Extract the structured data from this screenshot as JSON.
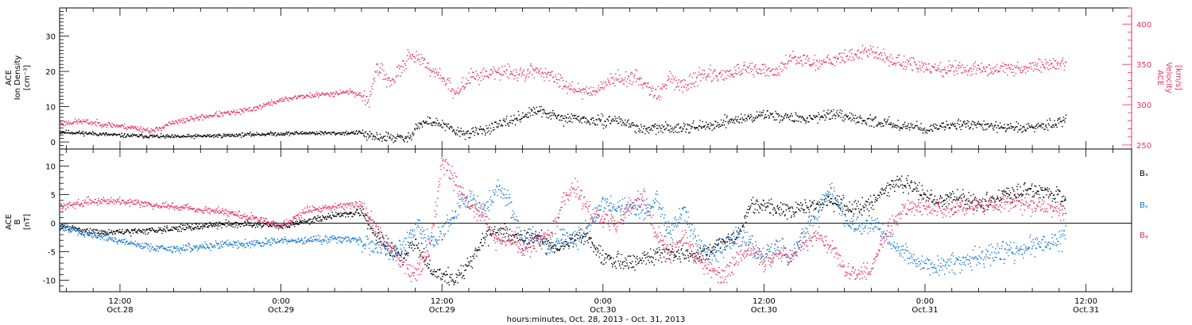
{
  "colors": {
    "black": "#000000",
    "pink": "#e8305f",
    "blue": "#1177d6",
    "axis": "#000000"
  },
  "xaxis": {
    "ticks": [
      {
        "t": 12,
        "top": "12:00",
        "bottom": "Oct.28"
      },
      {
        "t": 24,
        "top": "0:00",
        "bottom": "Oct.29"
      },
      {
        "t": 36,
        "top": "12:00",
        "bottom": "Oct.29"
      },
      {
        "t": 48,
        "top": "0:00",
        "bottom": "Oct.30"
      },
      {
        "t": 60,
        "top": "12:00",
        "bottom": "Oct.30"
      },
      {
        "t": 72,
        "top": "0:00",
        "bottom": "Oct.31"
      },
      {
        "t": 84,
        "top": "12:00",
        "bottom": "Oct.31"
      }
    ],
    "label": "hours:minutes, Oct. 28, 2013 - Oct. 31, 2013"
  },
  "chart_data": [
    {
      "type": "scatter",
      "title": "",
      "xlabel": "hours:minutes, Oct. 28, 2013 - Oct. 31, 2013",
      "xlim_hours_from_oct28_0000": [
        7.5,
        87.4
      ],
      "ylabel_left": [
        "ACE",
        "Ion Density",
        "[cm⁻³]"
      ],
      "ylim_left": [
        -2,
        38
      ],
      "yticks_left": [
        0,
        10,
        20,
        30
      ],
      "ylabel_right": [
        "ACE",
        "Velocity",
        "[km/s]"
      ],
      "ylim_right": [
        245,
        420
      ],
      "yticks_right": [
        250,
        300,
        350,
        400
      ],
      "series": [
        {
          "name": "",
          "axis": "left",
          "color": "black",
          "x": [
            7.5,
            10,
            12,
            14,
            16,
            18,
            20,
            22,
            24,
            26,
            28,
            30,
            30.5,
            32,
            33.5,
            34,
            35,
            36,
            37,
            38,
            39,
            40,
            41,
            42,
            43,
            44,
            45,
            46,
            47,
            48,
            49,
            50,
            51,
            52,
            53,
            54,
            55,
            56,
            57,
            58,
            59,
            60,
            61,
            62,
            63,
            64,
            65,
            66,
            67,
            68,
            69,
            70,
            71,
            72,
            73,
            74,
            75,
            76,
            77,
            78,
            79,
            80,
            81,
            82,
            82.5
          ],
          "y": [
            3,
            2.5,
            2,
            1.8,
            1.6,
            1.8,
            2,
            2.3,
            2.5,
            2.7,
            2.6,
            2.8,
            1.5,
            1.5,
            1,
            4.5,
            6,
            5,
            3,
            2.5,
            3.5,
            4.5,
            6,
            7.5,
            9,
            8,
            6.5,
            7,
            6,
            6,
            6.5,
            5,
            3.5,
            4,
            4,
            4.5,
            4.5,
            4.5,
            6,
            6.5,
            7,
            8,
            7.5,
            7,
            6.5,
            7.5,
            8,
            7,
            6.5,
            6,
            5.5,
            5,
            4.5,
            4,
            4,
            5,
            5.5,
            5,
            4.5,
            4.2,
            4,
            4.5,
            5,
            6,
            7
          ]
        },
        {
          "name": "",
          "axis": "right",
          "color": "pink",
          "x": [
            7.5,
            9,
            11,
            13,
            14.5,
            15.5,
            17,
            19,
            21,
            22,
            23.5,
            25,
            27,
            29,
            30,
            30.5,
            31,
            31.5,
            32,
            33,
            33.5,
            34,
            35,
            36,
            37,
            38,
            39,
            40,
            41,
            42,
            43,
            44,
            45,
            46,
            47,
            48,
            49,
            50,
            51,
            52,
            53,
            54,
            55,
            56,
            57,
            58,
            59,
            60,
            61,
            62,
            63,
            64,
            65,
            66,
            67,
            68,
            69,
            70,
            71,
            72,
            73,
            74,
            75,
            76,
            77,
            78,
            79,
            80,
            81,
            82,
            82.5
          ],
          "y": [
            277,
            280,
            276,
            272,
            268,
            276,
            282,
            288,
            292,
            296,
            304,
            310,
            313,
            317,
            312,
            305,
            338,
            345,
            326,
            345,
            364,
            360,
            346,
            336,
            312,
            335,
            338,
            340,
            341,
            338,
            344,
            336,
            328,
            320,
            316,
            326,
            333,
            334,
            330,
            312,
            334,
            322,
            336,
            338,
            338,
            342,
            344,
            342,
            340,
            361,
            355,
            352,
            358,
            360,
            364,
            368,
            358,
            354,
            351,
            346,
            344,
            346,
            345,
            344,
            344,
            348,
            345,
            348,
            350,
            352,
            350
          ]
        }
      ]
    },
    {
      "type": "scatter",
      "title": "",
      "xlabel": "hours:minutes, Oct. 28, 2013 - Oct. 31, 2013",
      "xlim_hours_from_oct28_0000": [
        7.5,
        87.4
      ],
      "ylabel": [
        "ACE",
        "B",
        "[nT]"
      ],
      "ylim": [
        -12,
        13
      ],
      "yticks": [
        -10,
        -5,
        0,
        5,
        10
      ],
      "series": [
        {
          "name": "Bₓ",
          "color": "black",
          "x": [
            7.5,
            10,
            12,
            14,
            16,
            18,
            20,
            22,
            24,
            26,
            28,
            30,
            31,
            32,
            33,
            34,
            35,
            36,
            37,
            38,
            39,
            40,
            41,
            42,
            43,
            44,
            45,
            46,
            47,
            48,
            49,
            50,
            51,
            52,
            53,
            54,
            55,
            56,
            57,
            58,
            59,
            60,
            61,
            62,
            63,
            64,
            65,
            66,
            67,
            68,
            69,
            70,
            71,
            72,
            73,
            74,
            75,
            76,
            77,
            78,
            79,
            80,
            81,
            82,
            82.5
          ],
          "y": [
            -0.5,
            -1.5,
            -1.5,
            -1.2,
            -0.8,
            -0.5,
            0,
            0,
            -0.5,
            0.5,
            1.5,
            2,
            -1.5,
            -4.5,
            -6,
            -3,
            -8,
            -9,
            -10,
            -7,
            -3,
            -1,
            -2,
            -3,
            -2,
            -4,
            -4,
            -2,
            -3,
            -6,
            -6.5,
            -7,
            -6,
            -5.5,
            -5,
            -5.5,
            -5.5,
            -4.5,
            -3,
            -2,
            3,
            3.5,
            2.5,
            2,
            3,
            3,
            4,
            3,
            2.5,
            4,
            6,
            7.5,
            6.5,
            5,
            4,
            4.5,
            4,
            3.5,
            4,
            5,
            5.5,
            6,
            5.5,
            5,
            4
          ]
        },
        {
          "name": "Bᵧ",
          "color": "blue",
          "x": [
            7.5,
            10,
            12,
            14,
            16,
            18,
            20,
            22,
            24,
            26,
            28,
            30,
            31,
            32,
            33,
            34,
            35,
            36,
            37,
            38,
            39,
            40,
            41,
            42,
            43,
            44,
            45,
            46,
            47,
            48,
            49,
            50,
            51,
            52,
            53,
            54,
            55,
            56,
            57,
            58,
            59,
            60,
            61,
            62,
            63,
            64,
            65,
            66,
            67,
            68,
            69,
            70,
            71,
            72,
            73,
            74,
            75,
            76,
            77,
            78,
            79,
            80,
            81,
            82,
            82.5
          ],
          "y": [
            -0.5,
            -2,
            -3,
            -4,
            -4.5,
            -4,
            -3.5,
            -3.5,
            -3,
            -3,
            -2.5,
            -3,
            -4,
            -4,
            -5,
            0,
            -3,
            -2,
            2,
            5,
            2,
            6,
            4,
            -3,
            -2,
            -4,
            -2,
            -3,
            0,
            4,
            2.5,
            3,
            2,
            4,
            -2,
            3,
            -3,
            -6,
            -4,
            -2,
            -4,
            -6,
            -4,
            -6,
            -2,
            3,
            6,
            1,
            -1,
            0,
            -2,
            -5,
            -6,
            -7,
            -7.5,
            -7,
            -6.5,
            -6,
            -5.5,
            -5,
            -4.5,
            -4,
            -3.5,
            -3,
            -2
          ]
        },
        {
          "name": "Bᵩ",
          "color": "pink",
          "x": [
            7.5,
            10,
            12,
            14,
            16,
            18,
            20,
            22,
            24,
            26,
            28,
            30,
            31,
            32,
            33,
            34,
            35,
            36,
            37,
            38,
            39,
            40,
            41,
            42,
            43,
            44,
            45,
            46,
            47,
            48,
            49,
            50,
            51,
            52,
            53,
            54,
            55,
            56,
            57,
            58,
            59,
            60,
            61,
            62,
            63,
            64,
            65,
            66,
            67,
            68,
            69,
            70,
            71,
            72,
            73,
            74,
            75,
            76,
            77,
            78,
            79,
            80,
            81,
            82,
            82.5
          ],
          "y": [
            3,
            4,
            4,
            3.5,
            3,
            2.5,
            2,
            1,
            -0.5,
            2.5,
            3,
            3.5,
            -1,
            -4,
            -7,
            -9,
            -5,
            11,
            7,
            3,
            2,
            -3,
            -2,
            -5,
            -3,
            -2,
            4,
            6,
            2,
            1,
            0,
            3,
            5,
            -2,
            -5,
            -2,
            -6,
            -8,
            -9,
            -6,
            -4,
            -7,
            -5,
            -6,
            -3,
            -2,
            -4,
            -8,
            -8.5,
            -8,
            -2,
            2,
            3,
            3,
            2.5,
            2.5,
            3,
            3,
            3.5,
            4,
            4,
            3,
            3,
            2,
            2
          ]
        }
      ],
      "legend": [
        "Bₓ",
        "Bᵧ",
        "Bᵩ"
      ],
      "legend_placement": "right",
      "zero_line": true
    }
  ]
}
